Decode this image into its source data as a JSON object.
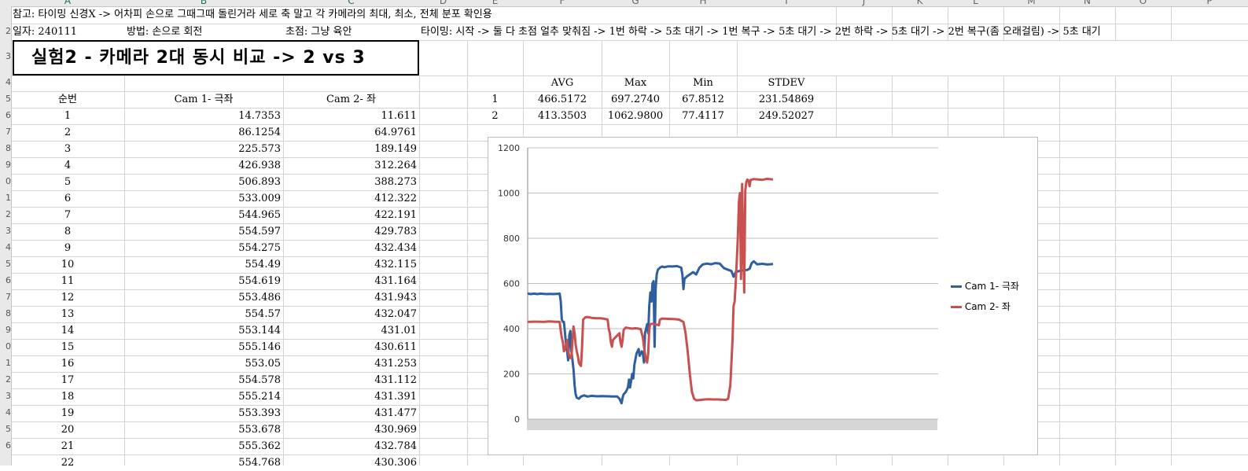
{
  "sheet": {
    "column_headers": [
      "A",
      "B",
      "C",
      "D",
      "E",
      "F",
      "G",
      "H",
      "I",
      "J",
      "K",
      "L",
      "M",
      "N",
      "O",
      "P"
    ],
    "row_numbers": [
      "2",
      "3",
      "4",
      "5",
      "6",
      "7",
      "8",
      "9",
      "0",
      "1",
      "2",
      "3",
      "4",
      "5",
      "6",
      "7",
      "8",
      "9",
      "0",
      "1",
      "2",
      "3",
      "4",
      "5",
      "6"
    ],
    "row1_note": "참고: 타이밍 신경X -> 어차피 손으로 그때그때 돌린거라 세로 축 말고 각 카메라의 최대, 최소, 전체 분포 확인용",
    "row2": {
      "date": "일자: 240111",
      "method": "방법: 손으로 회전",
      "focus": "초점: 그냥 육안",
      "timing": "타이밍: 시작 -> 둘 다 초점 얼추 맞춰짐 -> 1번 하락 -> 5초 대기 -> 1번 복구 -> 5초 대기 -> 2번 하락 -> 5초 대기 -> 2번 복구(좀 오래걸림) -> 5초 대기"
    },
    "title": "실험2 - 카메라 2대 동시 비교 -> 2 vs 3",
    "table_headers": [
      "순번",
      "Cam 1- 극좌",
      "Cam 2- 좌"
    ],
    "rows": [
      [
        "1",
        "14.7353",
        "11.611"
      ],
      [
        "2",
        "86.1254",
        "64.9761"
      ],
      [
        "3",
        "225.573",
        "189.149"
      ],
      [
        "4",
        "426.938",
        "312.264"
      ],
      [
        "5",
        "506.893",
        "388.273"
      ],
      [
        "6",
        "533.009",
        "412.322"
      ],
      [
        "7",
        "544.965",
        "422.191"
      ],
      [
        "8",
        "554.597",
        "429.783"
      ],
      [
        "9",
        "554.275",
        "432.434"
      ],
      [
        "10",
        "554.49",
        "432.115"
      ],
      [
        "11",
        "554.619",
        "431.164"
      ],
      [
        "12",
        "553.486",
        "431.943"
      ],
      [
        "13",
        "554.57",
        "432.047"
      ],
      [
        "14",
        "553.144",
        "431.01"
      ],
      [
        "15",
        "555.146",
        "430.611"
      ],
      [
        "16",
        "553.05",
        "431.253"
      ],
      [
        "17",
        "554.578",
        "431.112"
      ],
      [
        "18",
        "555.214",
        "431.391"
      ],
      [
        "19",
        "553.393",
        "431.477"
      ],
      [
        "20",
        "553.678",
        "430.969"
      ],
      [
        "21",
        "555.362",
        "432.784"
      ],
      [
        "22",
        "554.768",
        "430.306"
      ]
    ],
    "stats": {
      "headers": [
        "AVG",
        "Max",
        "Min",
        "STDEV"
      ],
      "rows": [
        [
          "1",
          "466.5172",
          "697.2740",
          "67.8512",
          "231.54869"
        ],
        [
          "2",
          "413.3503",
          "1062.9800",
          "77.4117",
          "249.52027"
        ]
      ]
    }
  },
  "colors": {
    "cam1": "#2e5f9e",
    "cam2": "#c8504f",
    "gridline": "#bfbfbf",
    "header_bg": "#e9e9e9"
  },
  "chart_data": {
    "type": "line",
    "ylim": [
      0,
      1200
    ],
    "yticks": [
      "0",
      "200",
      "400",
      "600",
      "800",
      "1000",
      "1200"
    ],
    "legend_position": "right",
    "series": [
      {
        "name": "Cam  1- 극좌",
        "points": [
          [
            0,
            555
          ],
          [
            3,
            553
          ],
          [
            6,
            555
          ],
          [
            9,
            553
          ],
          [
            12,
            555
          ],
          [
            15,
            554
          ],
          [
            18,
            553
          ],
          [
            21,
            554
          ],
          [
            24,
            553
          ],
          [
            27,
            554
          ],
          [
            30,
            555
          ],
          [
            31,
            520
          ],
          [
            32,
            440
          ],
          [
            33,
            430
          ],
          [
            34,
            430
          ],
          [
            35,
            380
          ],
          [
            36,
            330
          ],
          [
            37,
            300
          ],
          [
            38,
            260
          ],
          [
            39,
            370
          ],
          [
            40,
            390
          ],
          [
            41,
            300
          ],
          [
            42,
            260
          ],
          [
            43,
            220
          ],
          [
            44,
            150
          ],
          [
            45,
            110
          ],
          [
            46,
            95
          ],
          [
            48,
            90
          ],
          [
            50,
            100
          ],
          [
            53,
            105
          ],
          [
            56,
            100
          ],
          [
            60,
            103
          ],
          [
            65,
            101
          ],
          [
            70,
            102
          ],
          [
            75,
            101
          ],
          [
            80,
            100
          ],
          [
            84,
            100
          ],
          [
            86,
            90
          ],
          [
            87,
            80
          ],
          [
            88,
            70
          ],
          [
            89,
            95
          ],
          [
            90,
            110
          ],
          [
            92,
            120
          ],
          [
            94,
            140
          ],
          [
            95,
            175
          ],
          [
            96,
            140
          ],
          [
            97,
            170
          ],
          [
            98,
            200
          ],
          [
            99,
            180
          ],
          [
            100,
            240
          ],
          [
            102,
            290
          ],
          [
            104,
            310
          ],
          [
            105,
            280
          ],
          [
            107,
            300
          ],
          [
            108,
            290
          ],
          [
            109,
            250
          ],
          [
            110,
            380
          ],
          [
            111,
            400
          ],
          [
            112,
            420
          ],
          [
            113,
            380
          ],
          [
            114,
            500
          ],
          [
            115,
            560
          ],
          [
            116,
            520
          ],
          [
            117,
            600
          ],
          [
            118,
            610
          ],
          [
            119,
            320
          ],
          [
            120,
            580
          ],
          [
            121,
            640
          ],
          [
            122,
            660
          ],
          [
            124,
            670
          ],
          [
            126,
            675
          ],
          [
            128,
            672
          ],
          [
            132,
            676
          ],
          [
            136,
            675
          ],
          [
            140,
            677
          ],
          [
            144,
            670
          ],
          [
            145,
            640
          ],
          [
            146,
            575
          ],
          [
            147,
            620
          ],
          [
            149,
            630
          ],
          [
            152,
            640
          ],
          [
            155,
            650
          ],
          [
            158,
            640
          ],
          [
            161,
            670
          ],
          [
            164,
            684
          ],
          [
            168,
            688
          ],
          [
            172,
            685
          ],
          [
            176,
            690
          ],
          [
            180,
            688
          ],
          [
            184,
            668
          ],
          [
            188,
            660
          ],
          [
            191,
            655
          ],
          [
            193,
            630
          ],
          [
            195,
            650
          ],
          [
            198,
            655
          ],
          [
            202,
            658
          ],
          [
            206,
            660
          ],
          [
            208,
            665
          ],
          [
            210,
            690
          ],
          [
            212,
            698
          ],
          [
            215,
            685
          ],
          [
            220,
            687
          ],
          [
            225,
            684
          ],
          [
            230,
            686
          ]
        ]
      },
      {
        "name": "Cam  2- 좌",
        "points": [
          [
            0,
            430
          ],
          [
            5,
            431
          ],
          [
            10,
            431
          ],
          [
            15,
            430
          ],
          [
            20,
            432
          ],
          [
            25,
            431
          ],
          [
            30,
            430
          ],
          [
            31,
            390
          ],
          [
            32,
            360
          ],
          [
            33,
            340
          ],
          [
            34,
            300
          ],
          [
            35,
            310
          ],
          [
            36,
            330
          ],
          [
            37,
            350
          ],
          [
            38,
            300
          ],
          [
            39,
            280
          ],
          [
            40,
            270
          ],
          [
            41,
            270
          ],
          [
            42,
            350
          ],
          [
            43,
            410
          ],
          [
            44,
            380
          ],
          [
            45,
            330
          ],
          [
            46,
            300
          ],
          [
            47,
            280
          ],
          [
            48,
            250
          ],
          [
            49,
            240
          ],
          [
            50,
            235
          ],
          [
            51,
            320
          ],
          [
            52,
            440
          ],
          [
            54,
            450
          ],
          [
            56,
            452
          ],
          [
            60,
            448
          ],
          [
            64,
            446
          ],
          [
            68,
            446
          ],
          [
            72,
            444
          ],
          [
            75,
            440
          ],
          [
            76,
            400
          ],
          [
            77,
            380
          ],
          [
            78,
            340
          ],
          [
            79,
            320
          ],
          [
            80,
            350
          ],
          [
            82,
            360
          ],
          [
            84,
            370
          ],
          [
            86,
            380
          ],
          [
            87,
            340
          ],
          [
            88,
            320
          ],
          [
            89,
            350
          ],
          [
            90,
            395
          ],
          [
            92,
            405
          ],
          [
            95,
            402
          ],
          [
            98,
            400
          ],
          [
            101,
            402
          ],
          [
            104,
            400
          ],
          [
            106,
            398
          ],
          [
            108,
            360
          ],
          [
            109,
            320
          ],
          [
            110,
            290
          ],
          [
            111,
            260
          ],
          [
            112,
            250
          ],
          [
            113,
            290
          ],
          [
            114,
            400
          ],
          [
            115,
            420
          ],
          [
            117,
            422
          ],
          [
            119,
            420
          ],
          [
            121,
            418
          ],
          [
            123,
            415
          ],
          [
            124,
            440
          ],
          [
            126,
            445
          ],
          [
            130,
            444
          ],
          [
            134,
            443
          ],
          [
            138,
            442
          ],
          [
            142,
            440
          ],
          [
            146,
            430
          ],
          [
            148,
            380
          ],
          [
            150,
            300
          ],
          [
            152,
            200
          ],
          [
            154,
            120
          ],
          [
            156,
            90
          ],
          [
            158,
            83
          ],
          [
            162,
            85
          ],
          [
            166,
            87
          ],
          [
            170,
            88
          ],
          [
            174,
            87
          ],
          [
            178,
            87
          ],
          [
            182,
            86
          ],
          [
            186,
            85
          ],
          [
            188,
            90
          ],
          [
            190,
            150
          ],
          [
            192,
            350
          ],
          [
            193,
            500
          ],
          [
            194,
            520
          ],
          [
            195,
            600
          ],
          [
            196,
            700
          ],
          [
            197,
            800
          ],
          [
            198,
            960
          ],
          [
            199,
            1000
          ],
          [
            200,
            620
          ],
          [
            201,
            1040
          ],
          [
            202,
            780
          ],
          [
            203,
            560
          ],
          [
            204,
            1010
          ],
          [
            205,
            1050
          ],
          [
            206,
            1060
          ],
          [
            207,
            1055
          ],
          [
            208,
            1030
          ],
          [
            209,
            1058
          ],
          [
            212,
            1062
          ],
          [
            216,
            1060
          ],
          [
            220,
            1058
          ],
          [
            224,
            1063
          ],
          [
            230,
            1060
          ]
        ]
      }
    ]
  }
}
